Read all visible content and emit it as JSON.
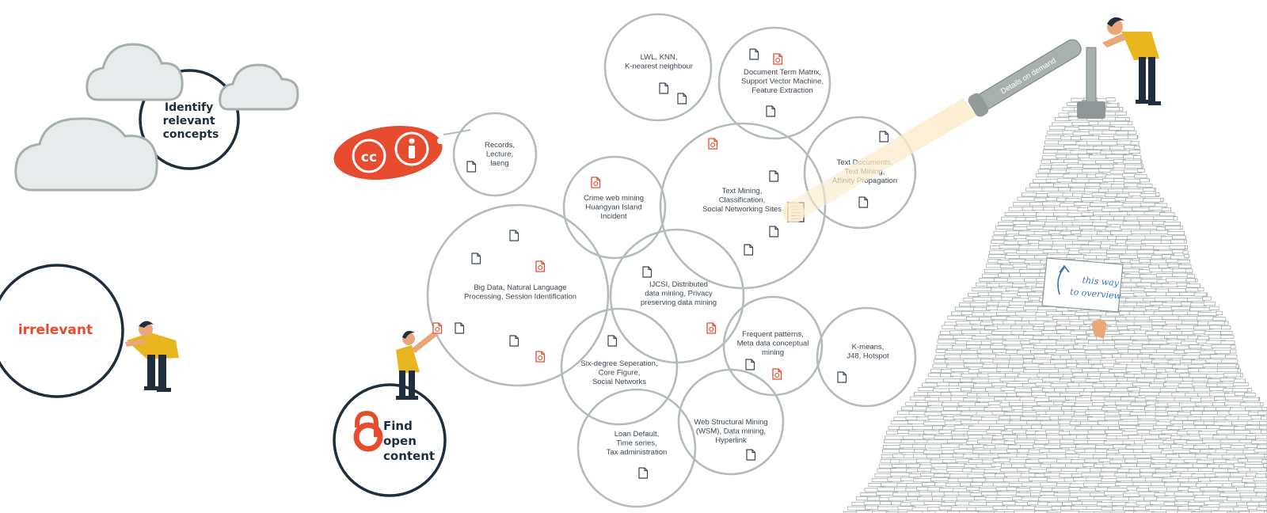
{
  "colors": {
    "dark": "#1f2d3d",
    "accent": "#e84c2f",
    "circle_gray": "#b4bcba",
    "cloud_fill": "#e7ebeb",
    "cloud_stroke": "#a7afad",
    "shirt": "#e9b51f",
    "beam": "#fbeccd"
  },
  "left_panel": {
    "concepts_label": [
      "Identify",
      "relevant",
      "concepts"
    ],
    "irrelevant_label": "irrelevant",
    "find_label": [
      "Find",
      "open",
      "content"
    ]
  },
  "tag_icon": "cc-by-license-tag",
  "telescope_label": "Details on demand",
  "sign_text": [
    "this way",
    "to overview"
  ],
  "bubbles": [
    {
      "lines": [
        "Records,",
        "Lecture,",
        "laeng"
      ]
    },
    {
      "lines": [
        "LWL, KNN,",
        "K-nearest neighbour"
      ]
    },
    {
      "lines": [
        "Document Term Matrix,",
        "Support Vector Machine,",
        "Feature Extraction"
      ]
    },
    {
      "lines": [
        "Text Documents,",
        "Text Mining,",
        "Affinity Propagation"
      ]
    },
    {
      "lines": [
        "Crime web mining",
        "Huangyan Island",
        "Incident"
      ]
    },
    {
      "lines": [
        "Text Mining,",
        "Classification,",
        "Social Networking Sites"
      ]
    },
    {
      "lines": [
        "Big Data, Natural Language",
        "Processing, Session Identification"
      ]
    },
    {
      "lines": [
        "IJCSI, Distributed",
        "data mining, Privacy",
        "preserving data mining"
      ]
    },
    {
      "lines": [
        "Frequent patterns,",
        "Meta data conceptual",
        "mining"
      ]
    },
    {
      "lines": [
        "K-means,",
        "J48, Hotspot"
      ]
    },
    {
      "lines": [
        "Six-degree Seperation,",
        "Core Figure,",
        "Social Networks"
      ]
    },
    {
      "lines": [
        "Web Structural Mining",
        "(WSM), Data mining,",
        "Hyperlink"
      ]
    },
    {
      "lines": [
        "Loan Default,",
        "Time series,",
        "Tax administration"
      ]
    }
  ]
}
